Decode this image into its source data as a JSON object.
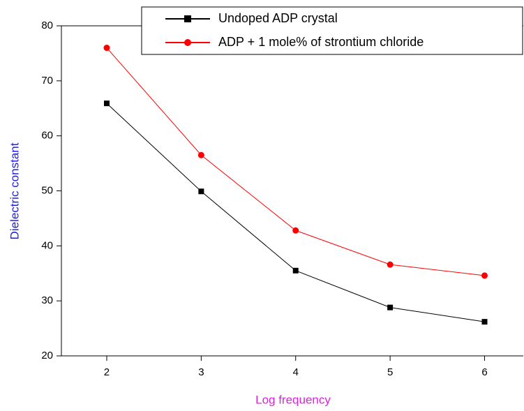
{
  "chart_data": {
    "type": "line",
    "x_label": "Log frequency",
    "y_label": "Dielectric constant",
    "x": [
      2,
      3,
      4,
      5,
      6
    ],
    "series": [
      {
        "name": "Undoped ADP crystal",
        "color": "#000000",
        "marker": "square",
        "values": [
          65.9,
          49.9,
          35.5,
          28.8,
          26.2
        ]
      },
      {
        "name": "ADP + 1 mole% of strontium chloride",
        "color": "#ff0000",
        "marker": "circle",
        "values": [
          76,
          56.5,
          42.8,
          36.6,
          34.6
        ]
      }
    ],
    "xlim": [
      1.52,
      6.41
    ],
    "ylim": [
      20,
      80
    ],
    "xticks": [
      2,
      3,
      4,
      5,
      6
    ],
    "yticks": [
      20,
      30,
      40,
      50,
      60,
      70,
      80
    ],
    "legend": "top-right"
  }
}
